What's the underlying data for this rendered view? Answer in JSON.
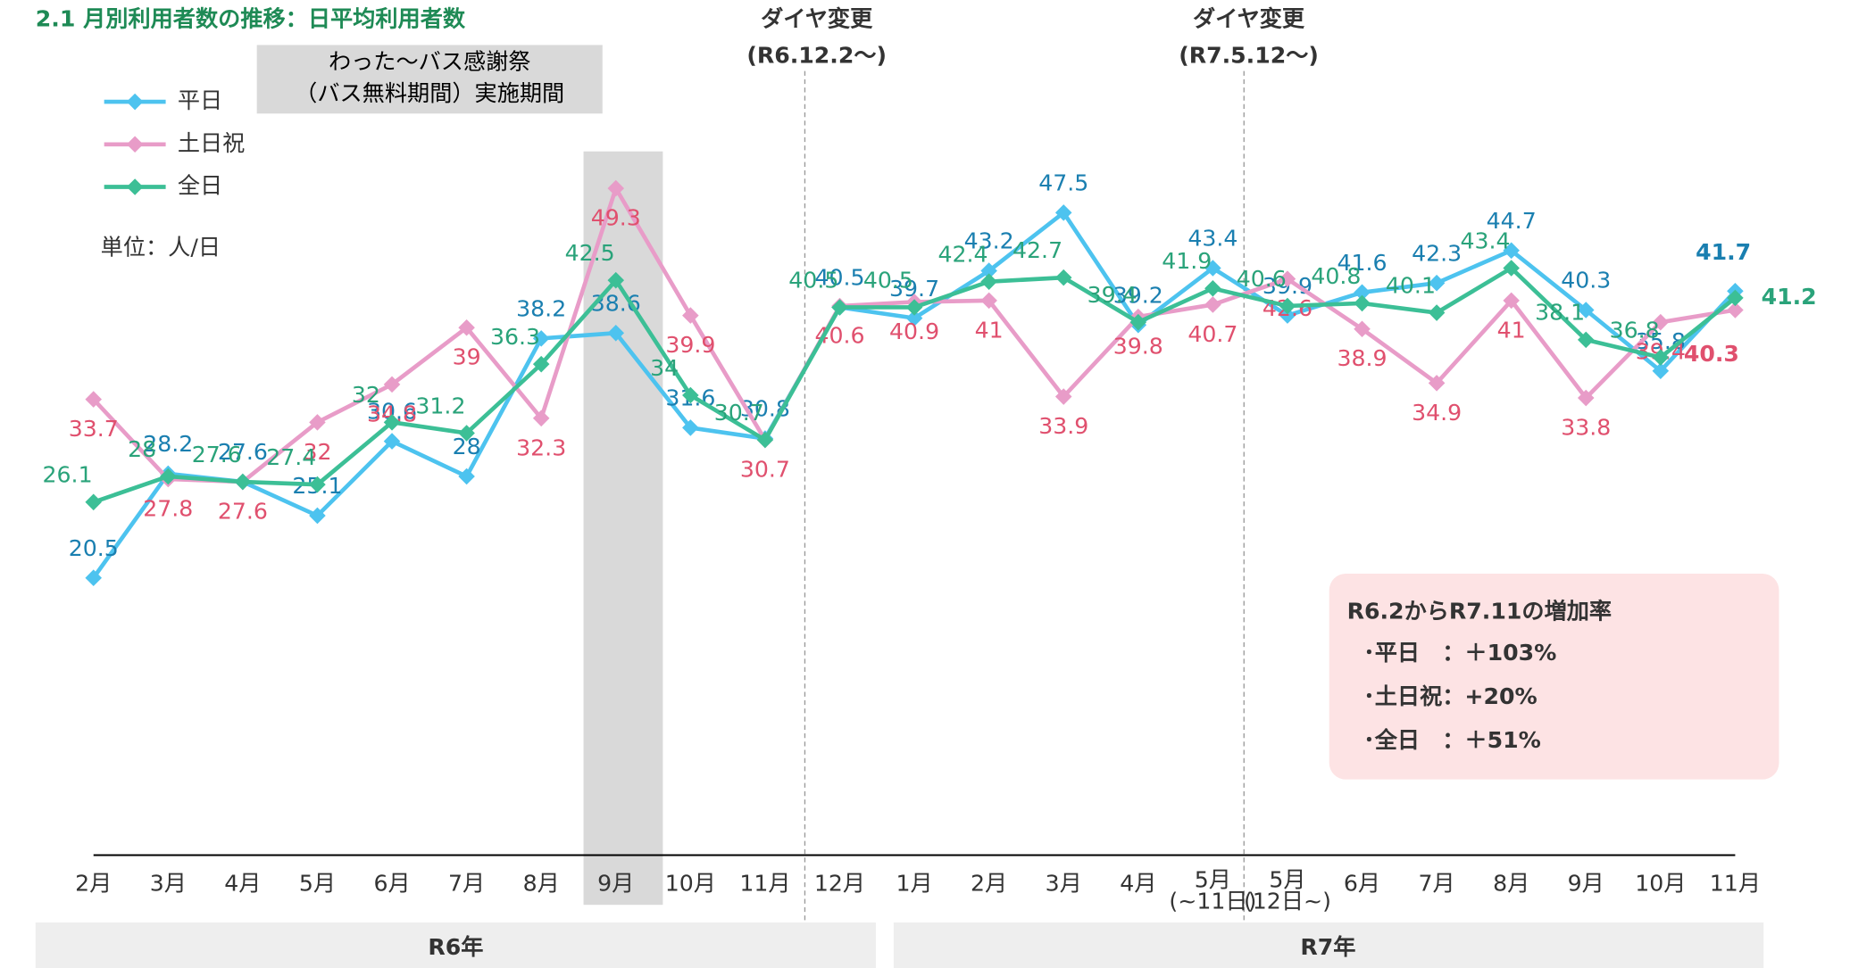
{
  "chart_data": {
    "type": "line",
    "title": "2.1  月別利用者数の推移：日平均利用者数",
    "unit_note": "単位：人/日",
    "annotations": {
      "shade": [
        "わった～バス感謝祭",
        "（バス無料期間）実施期間"
      ],
      "change1": [
        "ダイヤ変更",
        "(R6.12.2～)"
      ],
      "change2": [
        "ダイヤ変更",
        "(R7.5.12～)"
      ]
    },
    "years": [
      "R6年",
      "R7年"
    ],
    "summary": [
      "R6.2からR7.11の増加率",
      "･平日　：＋103%",
      "･土日祝：+20%",
      "･全日　：＋51%"
    ],
    "categories": [
      "2月",
      "3月",
      "4月",
      "5月",
      "6月",
      "7月",
      "8月",
      "9月",
      "10月",
      "11月",
      "12月",
      "1月",
      "2月",
      "3月",
      "4月",
      "5月\n(~11日)",
      "5月\n(12日~)",
      "6月",
      "7月",
      "8月",
      "9月",
      "10月",
      "11月"
    ],
    "ylim": [
      0,
      55
    ],
    "legend": "upper left",
    "series": [
      {
        "name": "平日",
        "color": "#4dc3ef",
        "label_color": "#1a7fb0",
        "values": [
          20.5,
          28.2,
          27.6,
          25.1,
          30.6,
          28.0,
          38.2,
          38.6,
          31.6,
          30.8,
          40.5,
          39.7,
          43.2,
          47.5,
          39.2,
          43.4,
          39.9,
          41.6,
          42.3,
          44.7,
          40.3,
          35.8,
          41.7
        ]
      },
      {
        "name": "土日祝",
        "color": "#e89cc8",
        "label_color": "#e0506e",
        "values": [
          33.7,
          27.8,
          27.6,
          32.0,
          34.8,
          39.0,
          32.3,
          49.3,
          39.9,
          30.7,
          40.6,
          40.9,
          41.0,
          33.9,
          39.8,
          40.7,
          42.6,
          38.9,
          34.9,
          41.0,
          33.8,
          39.4,
          40.3
        ]
      },
      {
        "name": "全日",
        "color": "#3cbf96",
        "label_color": "#2aa37a",
        "values": [
          26.1,
          28.0,
          27.6,
          27.4,
          32.0,
          31.2,
          36.3,
          42.5,
          34.0,
          30.7,
          40.5,
          40.5,
          42.4,
          42.7,
          39.4,
          41.9,
          40.6,
          40.8,
          40.1,
          43.4,
          38.1,
          36.8,
          41.2
        ]
      }
    ]
  }
}
